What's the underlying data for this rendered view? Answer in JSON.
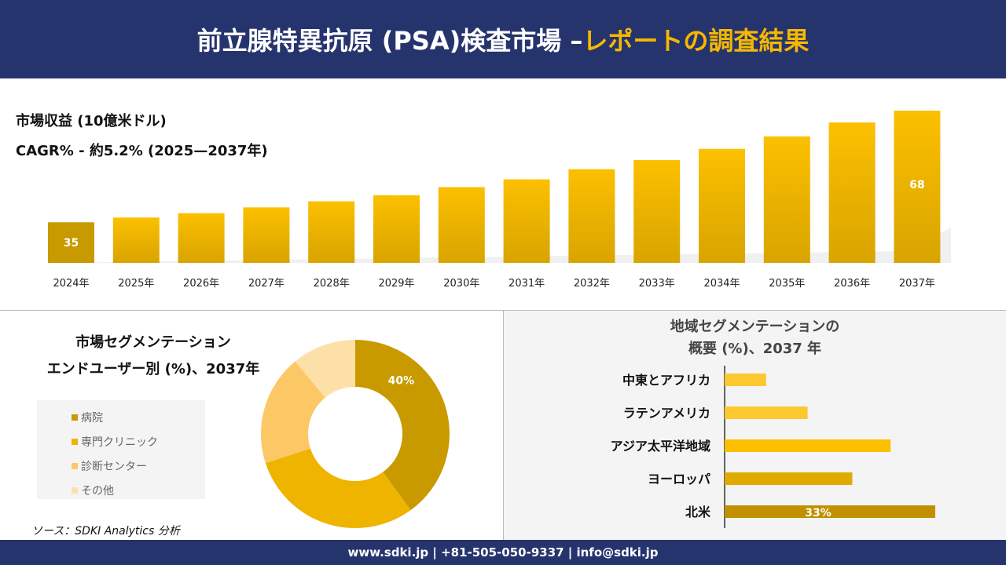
{
  "header": {
    "title_main": "前立腺特異抗原 (PSA)検査市場 –",
    "title_highlight": "レポートの調査結果"
  },
  "colors": {
    "navy": "#26346e",
    "accent": "#f5b800"
  },
  "chart_data": [
    {
      "type": "bar",
      "title": "市場収益 (10億米ドル)",
      "subtitle": "CAGR% - 約5.2% (2025—2037年)",
      "categories": [
        "2024年",
        "2025年",
        "2026年",
        "2027年",
        "2028年",
        "2029年",
        "2030年",
        "2031年",
        "2032年",
        "2033年",
        "2034年",
        "2035年",
        "2036年",
        "2037年"
      ],
      "values": [
        35,
        36.4,
        37.7,
        39.4,
        41.2,
        43.0,
        45.4,
        47.7,
        50.7,
        53.4,
        56.7,
        60.4,
        64.5,
        68
      ],
      "data_labels": {
        "0": "35",
        "13": "68"
      },
      "ylim": [
        23,
        70
      ],
      "grid": false
    },
    {
      "type": "pie",
      "donut": true,
      "title": "市場セグメンテーション",
      "title2": "エンドユーザー別 (%)、2037年",
      "categories": [
        "病院",
        "専門クリニック",
        "診断センター",
        "その他"
      ],
      "values": [
        40,
        30,
        19,
        11
      ],
      "colors": [
        "#c89a00",
        "#eeb400",
        "#fcc865",
        "#fde0a8"
      ],
      "data_labels": {
        "0": "40%"
      },
      "legend": "left"
    },
    {
      "type": "bar",
      "orientation": "horizontal",
      "title": "地域セグメンテーションの",
      "title2": "概要 (%)、2037 年",
      "categories": [
        "中東とアフリカ",
        "ラテンアメリカ",
        "アジア太平洋地域",
        "ヨーロッパ",
        "北米"
      ],
      "values": [
        6.5,
        13,
        26,
        20,
        33
      ],
      "colors": [
        "#fcc830",
        "#fcc830",
        "#fcc000",
        "#e0aa00",
        "#c09000"
      ],
      "data_labels": {
        "4": "33%"
      }
    }
  ],
  "source": "ソース：SDKI Analytics 分析",
  "footer": "www.sdki.jp | +81-505-050-9337 | info@sdki.jp"
}
